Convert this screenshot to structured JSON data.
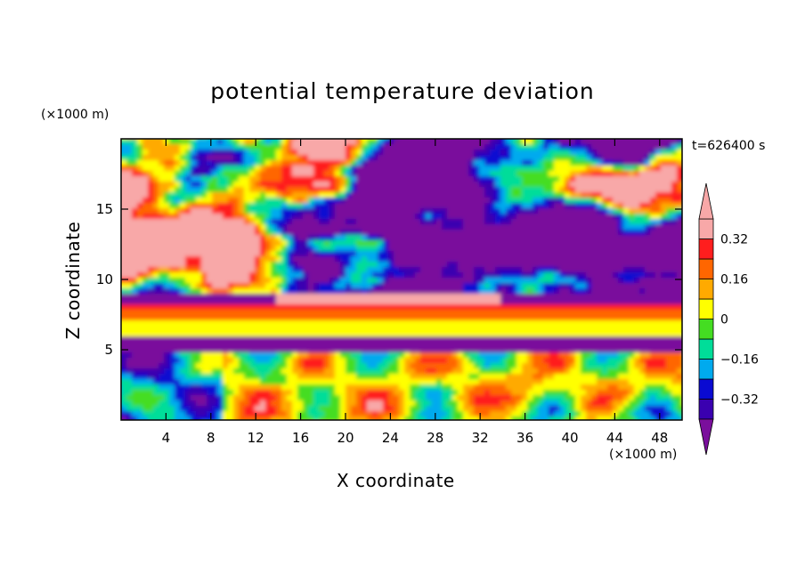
{
  "chart_data": {
    "type": "heatmap",
    "title": "potential temperature deviation",
    "xlabel": "X coordinate",
    "ylabel": "Z coordinate",
    "x_unit": "(×1000 m)",
    "y_unit": "(×1000 m)",
    "time_label": "t=626400 s",
    "xlim": [
      0,
      50
    ],
    "ylim": [
      0,
      20
    ],
    "x_ticks": [
      4,
      8,
      12,
      16,
      20,
      24,
      28,
      32,
      36,
      40,
      44,
      48
    ],
    "y_ticks": [
      5,
      10,
      15
    ],
    "colorbar": {
      "levels": [
        -0.4,
        -0.32,
        -0.24,
        -0.16,
        -0.08,
        0,
        0.08,
        0.16,
        0.24,
        0.32,
        0.4
      ],
      "tick_labels": [
        "0.32",
        "0.16",
        "0",
        "−0.16",
        "−0.32"
      ],
      "tick_values": [
        0.32,
        0.16,
        0,
        -0.16,
        -0.32
      ],
      "colors": [
        "#7a0f9c",
        "#3a00b0",
        "#0a0ad2",
        "#00aaee",
        "#00dd99",
        "#44dd22",
        "#ffff00",
        "#ffaa00",
        "#ff6600",
        "#ff1e1e",
        "#f8a8a8"
      ],
      "extend": "both"
    }
  }
}
